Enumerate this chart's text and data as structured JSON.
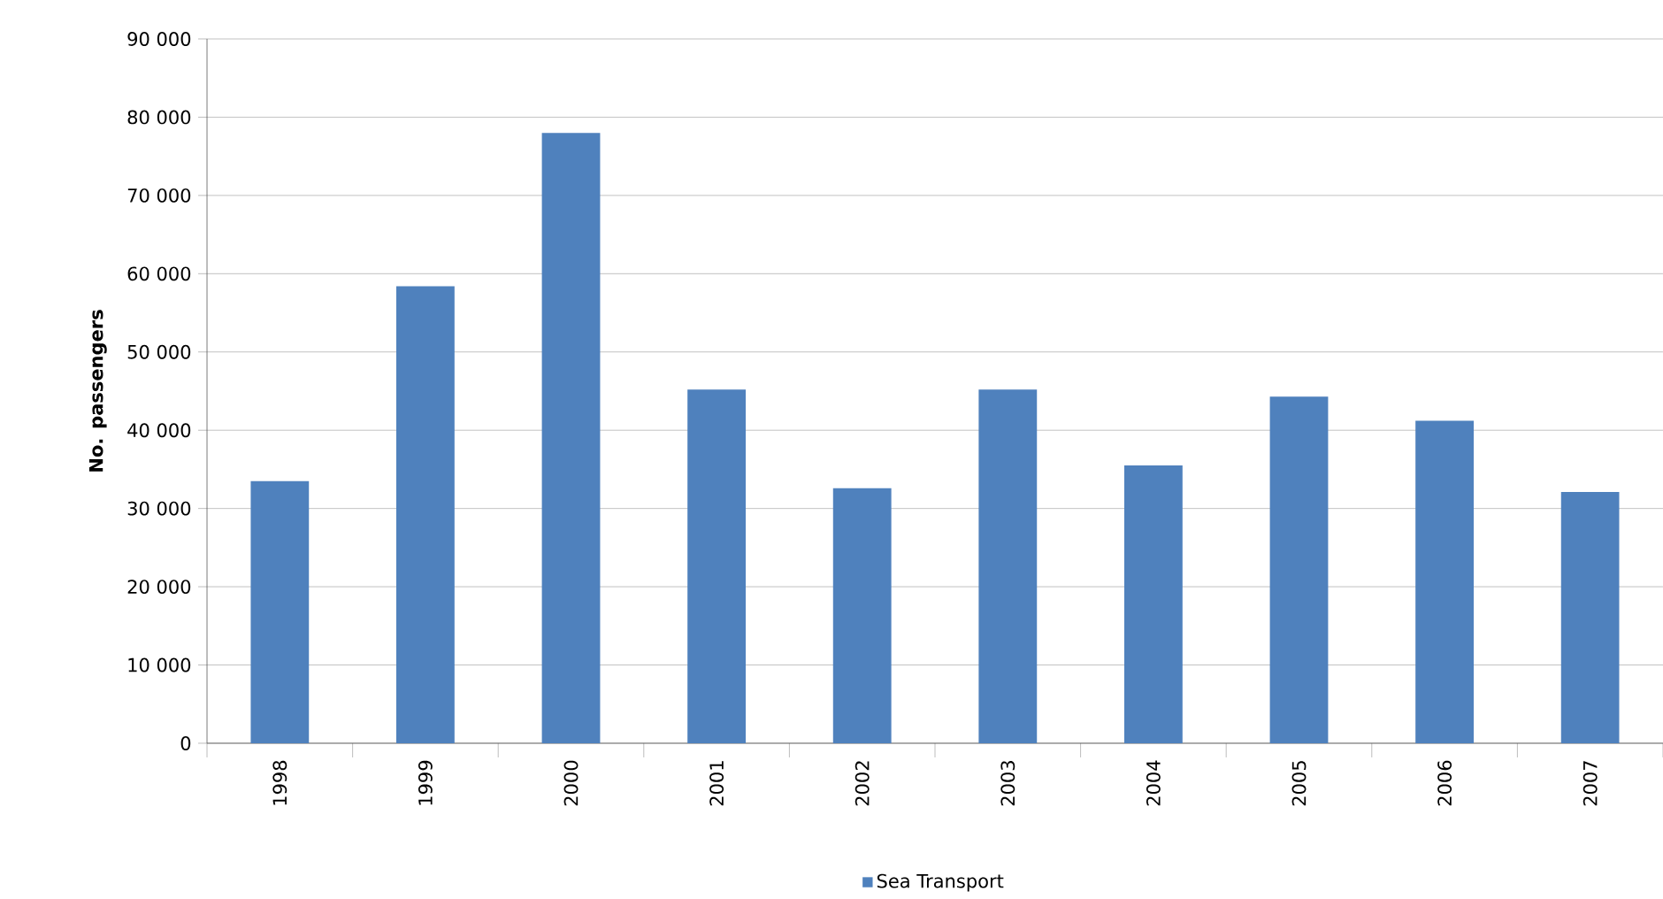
{
  "chart_data": {
    "type": "bar",
    "ylabel": "No. passengers",
    "categories": [
      "1998",
      "1999",
      "2000",
      "2001",
      "2002",
      "2003",
      "2004",
      "2005",
      "2006",
      "2007"
    ],
    "series": [
      {
        "name": "Sea Transport",
        "color": "#4f81bd",
        "values": [
          33500,
          58400,
          78000,
          45200,
          32600,
          45200,
          35500,
          44300,
          41200,
          32100
        ]
      }
    ],
    "ylim": [
      0,
      90000
    ],
    "yticks": [
      0,
      {
        "value": 10000,
        "label": "10 000"
      },
      {
        "value": 20000,
        "label": "20 000"
      },
      {
        "value": 30000,
        "label": "30 000"
      },
      {
        "value": 40000,
        "label": "40 000"
      },
      {
        "value": 50000,
        "label": "50 000"
      },
      {
        "value": 60000,
        "label": "60 000"
      },
      {
        "value": 70000,
        "label": "70 000"
      },
      {
        "value": 80000,
        "label": "80 000"
      },
      {
        "value": 90000,
        "label": "90 000"
      }
    ],
    "grid": "y",
    "legend": "bottom"
  }
}
